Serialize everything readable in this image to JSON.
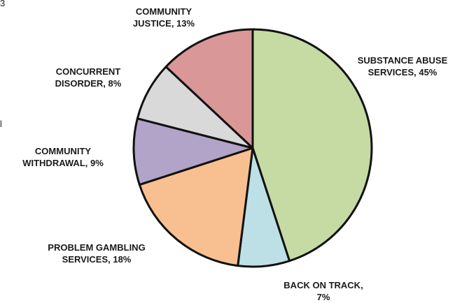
{
  "chart_data": {
    "type": "pie",
    "start_angle_deg": 0,
    "direction": "clockwise",
    "slices": [
      {
        "label": "SUBSTANCE ABUSE\nSERVICES, 45%",
        "value": 45,
        "color": "#c5dba3"
      },
      {
        "label": "BACK ON TRACK,\n7%",
        "value": 7,
        "color": "#bde0e6"
      },
      {
        "label": "PROBLEM GAMBLING\nSERVICES, 18%",
        "value": 18,
        "color": "#f8c090"
      },
      {
        "label": "COMMUNITY\nWITHDRAWAL, 9%",
        "value": 9,
        "color": "#b2a3c9"
      },
      {
        "label": "CONCURRENT\nDISORDER, 8%",
        "value": 8,
        "color": "#d9d9d9"
      },
      {
        "label": "COMMUNITY\nJUSTICE, 13%",
        "value": 13,
        "color": "#d99797"
      }
    ]
  },
  "edge_fragments": {
    "top_left": "3",
    "middle_left": "l"
  }
}
